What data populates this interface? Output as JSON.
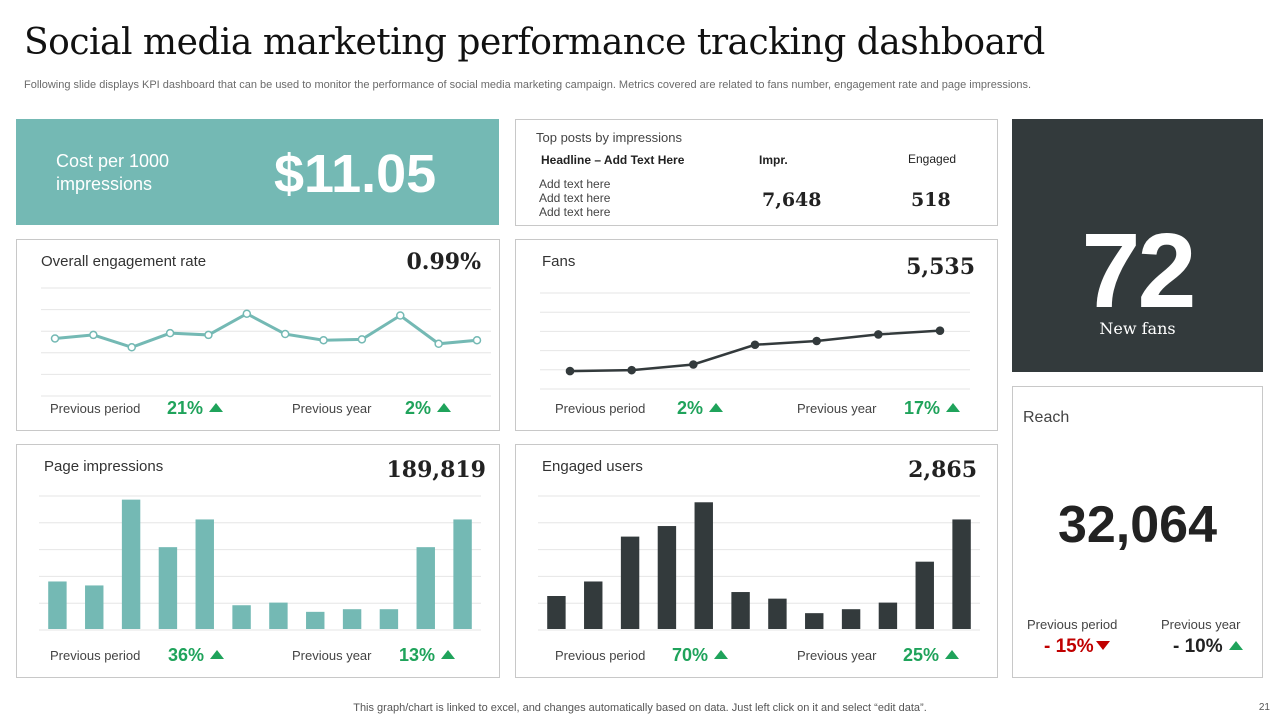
{
  "header": {
    "title": "Social media marketing performance tracking dashboard",
    "subtitle": "Following slide displays KPI dashboard that can be used to monitor the performance of social media marketing campaign. Metrics covered are related to fans number, engagement rate and page impressions."
  },
  "cpm": {
    "label": "Cost per 1000 impressions",
    "value": "$11.05"
  },
  "top_posts": {
    "title": "Top posts by impressions",
    "col_headline": "Headline – Add Text Here",
    "col_impr": "Impr.",
    "col_engaged": "Engaged",
    "rows": [
      "Add text here",
      "Add text here",
      "Add text here"
    ],
    "impr_value": "7,648",
    "engaged_value": "518"
  },
  "new_fans": {
    "value": "72",
    "label": "New fans"
  },
  "engagement": {
    "title": "Overall engagement rate",
    "value": "0.99%",
    "prev_period_label": "Previous period",
    "prev_period_value": "21%",
    "prev_year_label": "Previous year",
    "prev_year_value": "2%"
  },
  "fans": {
    "title": "Fans",
    "value": "5,535",
    "prev_period_label": "Previous period",
    "prev_period_value": "2%",
    "prev_year_label": "Previous year",
    "prev_year_value": "17%"
  },
  "page_impressions": {
    "title": "Page impressions",
    "value": "189,819",
    "prev_period_label": "Previous period",
    "prev_period_value": "36%",
    "prev_year_label": "Previous year",
    "prev_year_value": "13%"
  },
  "engaged_users": {
    "title": "Engaged users",
    "value": "2,865",
    "prev_period_label": "Previous period",
    "prev_period_value": "70%",
    "prev_year_label": "Previous year",
    "prev_year_value": "25%"
  },
  "reach": {
    "title": "Reach",
    "value": "32,064",
    "prev_period_label": "Previous period",
    "prev_period_value": "- 15%",
    "prev_year_label": "Previous year",
    "prev_year_value": "- 10%"
  },
  "footer": {
    "note": "This graph/chart is linked to excel,  and changes automatically based on data. Just left click on it and select “edit data”.",
    "page_number": "21"
  },
  "colors": {
    "teal": "#74b9b4",
    "dark": "#333a3c",
    "green": "#1fa35b",
    "red": "#c00000"
  },
  "chart_data": [
    {
      "id": "engagement",
      "type": "line",
      "title": "Overall engagement rate",
      "values": [
        0.64,
        0.68,
        0.54,
        0.7,
        0.68,
        0.92,
        0.69,
        0.62,
        0.63,
        0.9,
        0.58,
        0.62
      ],
      "ylim": [
        0,
        1.2
      ],
      "color": "#74b9b4",
      "markers": "hollow",
      "grid": true
    },
    {
      "id": "fans",
      "type": "line",
      "title": "Fans",
      "values": [
        0.18,
        0.19,
        0.25,
        0.46,
        0.5,
        0.57,
        0.61
      ],
      "ylim": [
        0,
        1.0
      ],
      "color": "#333a3c",
      "markers": "filled",
      "grid": true
    },
    {
      "id": "page_impressions",
      "type": "bar",
      "title": "Page impressions",
      "values": [
        36,
        33,
        98,
        62,
        83,
        18,
        20,
        13,
        15,
        15,
        62,
        83
      ],
      "ylim": [
        0,
        100
      ],
      "color": "#74b9b4",
      "grid": true
    },
    {
      "id": "engaged_users",
      "type": "bar",
      "title": "Engaged users",
      "values": [
        25,
        36,
        70,
        78,
        96,
        28,
        23,
        12,
        15,
        20,
        51,
        83
      ],
      "ylim": [
        0,
        100
      ],
      "color": "#333a3c",
      "grid": true
    }
  ]
}
